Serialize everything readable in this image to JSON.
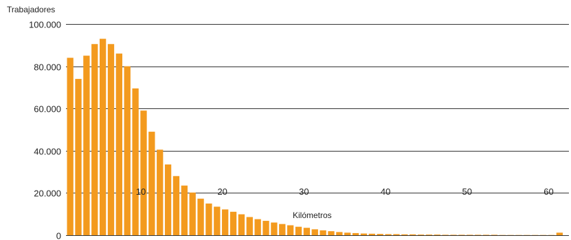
{
  "chart_data": {
    "type": "bar",
    "ylabel": "Trabajadores",
    "xlabel": "Kilómetros",
    "ylim": [
      0,
      100000
    ],
    "yticks": [
      0,
      20000,
      40000,
      60000,
      80000,
      100000
    ],
    "ytick_labels": [
      "0",
      "20.000",
      "40.000",
      "60.000",
      "80.000",
      "100.000"
    ],
    "xticks": [
      10,
      20,
      30,
      40,
      50,
      60
    ],
    "xtick_labels": [
      "10",
      "20",
      "30",
      "40",
      "50",
      "60"
    ],
    "grid": true,
    "bar_color": "#f39a1e",
    "x": [
      1,
      2,
      3,
      4,
      5,
      6,
      7,
      8,
      9,
      10,
      11,
      12,
      13,
      14,
      15,
      16,
      17,
      18,
      19,
      20,
      21,
      22,
      23,
      24,
      25,
      26,
      27,
      28,
      29,
      30,
      31,
      32,
      33,
      34,
      35,
      36,
      37,
      38,
      39,
      40,
      41,
      42,
      43,
      44,
      45,
      46,
      47,
      48,
      49,
      50,
      51,
      52,
      53,
      54,
      55,
      56,
      57,
      58,
      59,
      60,
      61
    ],
    "values": [
      84000,
      74000,
      85000,
      90500,
      93000,
      90500,
      86000,
      80000,
      69500,
      59000,
      49000,
      40500,
      33500,
      28000,
      23500,
      20200,
      17300,
      15000,
      13500,
      12200,
      11100,
      9900,
      8600,
      7600,
      6800,
      6000,
      5300,
      4700,
      4000,
      3500,
      2800,
      2300,
      1900,
      1500,
      1200,
      1000,
      800,
      700,
      600,
      500,
      500,
      400,
      400,
      300,
      300,
      300,
      200,
      200,
      200,
      200,
      200,
      200,
      200,
      100,
      100,
      100,
      100,
      100,
      100,
      100,
      1200
    ]
  }
}
